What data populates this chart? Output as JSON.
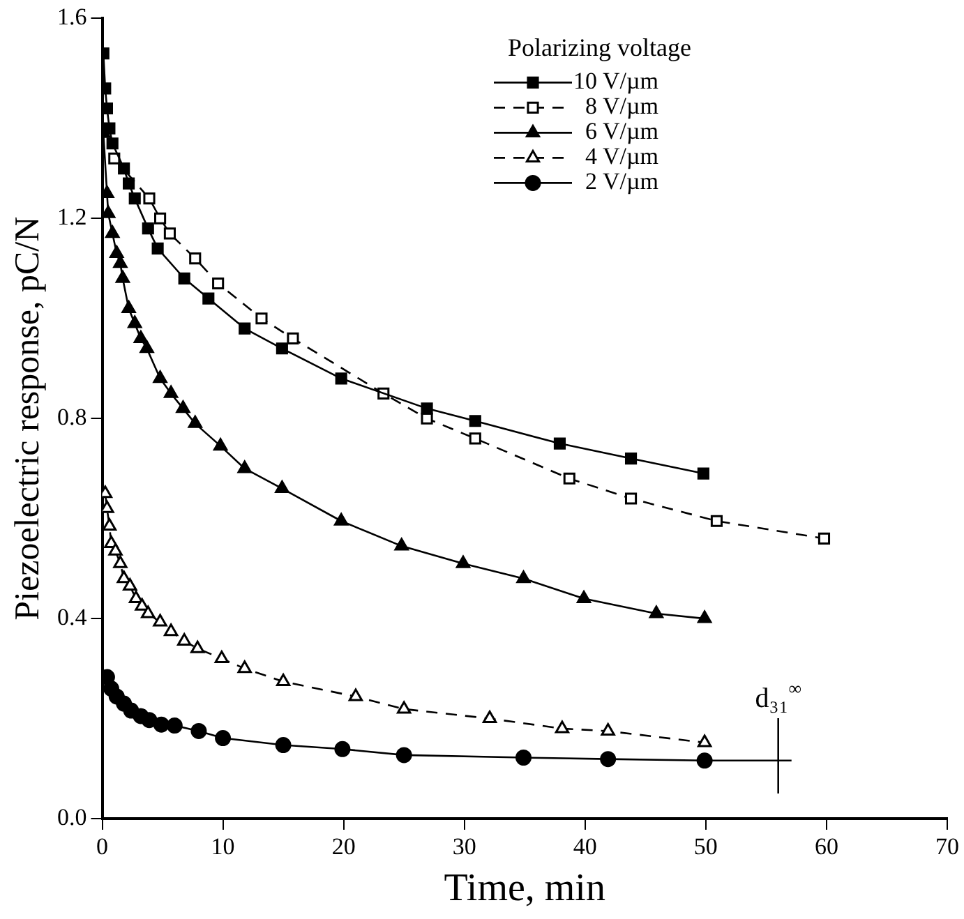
{
  "chart_data": {
    "type": "line",
    "xlabel": "Time, min",
    "ylabel": "Piezoelectric response, pC/N",
    "legend_title": "Polarizing voltage",
    "legend": "top right",
    "grid": false,
    "xlim": [
      0,
      70
    ],
    "xticks": [
      0,
      10,
      20,
      30,
      40,
      50,
      60,
      70
    ],
    "ylim": [
      0,
      1.6
    ],
    "yticks": [
      {
        "value": 0,
        "label": "0.0"
      },
      0.4,
      0.8,
      1.2,
      1.6
    ],
    "ref_lines": [
      {
        "axis": "x",
        "value": 56,
        "label": "d₃₁$^{∞}$"
      }
    ],
    "series": [
      {
        "name": "10 V/µm",
        "color": "#000000",
        "marker": "square",
        "line_style": "solid",
        "x": [
          0.1,
          0.25,
          0.4,
          0.6,
          0.85,
          1.8,
          2.2,
          2.7,
          3.8,
          4.6,
          6.8,
          8.8,
          11.8,
          14.9,
          19.8,
          26.9,
          30.9,
          37.9,
          43.8,
          49.8
        ],
        "values": [
          1.53,
          1.46,
          1.42,
          1.38,
          1.35,
          1.3,
          1.27,
          1.24,
          1.18,
          1.14,
          1.08,
          1.04,
          0.98,
          0.94,
          0.88,
          0.82,
          0.795,
          0.75,
          0.72,
          0.69
        ]
      },
      {
        "name": "8 V/µm",
        "color": "#000000",
        "marker": "square",
        "line_style": "dashed",
        "x": [
          1,
          3.9,
          4.8,
          5.6,
          7.7,
          9.6,
          13.2,
          15.8,
          23.3,
          26.9,
          30.9,
          38.7,
          43.8,
          50.9,
          59.8
        ],
        "values": [
          1.32,
          1.24,
          1.2,
          1.17,
          1.12,
          1.07,
          1.0,
          0.96,
          0.85,
          0.8,
          0.76,
          0.68,
          0.64,
          0.595,
          0.56
        ]
      },
      {
        "name": "6 V/µm",
        "color": "#000000",
        "marker": "triangle",
        "line_style": "solid",
        "x": [
          0.1,
          0.4,
          0.5,
          0.85,
          1.2,
          1.5,
          1.7,
          2.2,
          2.7,
          3.2,
          3.7,
          4.8,
          5.7,
          6.7,
          7.7,
          9.8,
          11.8,
          14.9,
          19.8,
          24.8,
          29.9,
          34.9,
          39.9,
          45.9,
          49.9
        ],
        "values": [
          1.37,
          1.25,
          1.21,
          1.17,
          1.13,
          1.11,
          1.08,
          1.02,
          0.99,
          0.96,
          0.94,
          0.88,
          0.85,
          0.82,
          0.79,
          0.745,
          0.7,
          0.66,
          0.595,
          0.545,
          0.51,
          0.48,
          0.44,
          0.41,
          0.4
        ]
      },
      {
        "name": "4 V/µm",
        "color": "#000000",
        "marker": "triangle",
        "line_style": "dashed",
        "x": [
          0.25,
          0.4,
          0.6,
          0.75,
          1.1,
          1.5,
          1.8,
          2.3,
          2.8,
          3.3,
          3.8,
          4.8,
          5.7,
          6.8,
          7.9,
          9.9,
          11.8,
          15,
          21,
          25,
          32.1,
          38.1,
          41.9,
          49.9
        ],
        "values": [
          0.65,
          0.62,
          0.585,
          0.55,
          0.535,
          0.51,
          0.48,
          0.465,
          0.44,
          0.425,
          0.41,
          0.393,
          0.374,
          0.355,
          0.34,
          0.32,
          0.3,
          0.274,
          0.244,
          0.219,
          0.2,
          0.18,
          0.175,
          0.152
        ]
      },
      {
        "name": "2 V/µm",
        "color": "#000000",
        "marker": "circle",
        "line_style": "solid",
        "x": [
          0.4,
          0.75,
          1.2,
          1.8,
          2.4,
          3.2,
          3.9,
          4.9,
          6,
          8,
          10,
          15,
          19.9,
          25,
          34.9,
          41.9,
          49.9
        ],
        "values": [
          0.283,
          0.26,
          0.244,
          0.23,
          0.216,
          0.205,
          0.197,
          0.188,
          0.186,
          0.175,
          0.161,
          0.147,
          0.139,
          0.127,
          0.122,
          0.119,
          0.116
        ]
      },
      {
        "color": "#000000",
        "marker": "none",
        "line_style": "solid",
        "x": [
          49.9,
          57.1
        ],
        "values": [
          0.116,
          0.116
        ]
      }
    ]
  }
}
